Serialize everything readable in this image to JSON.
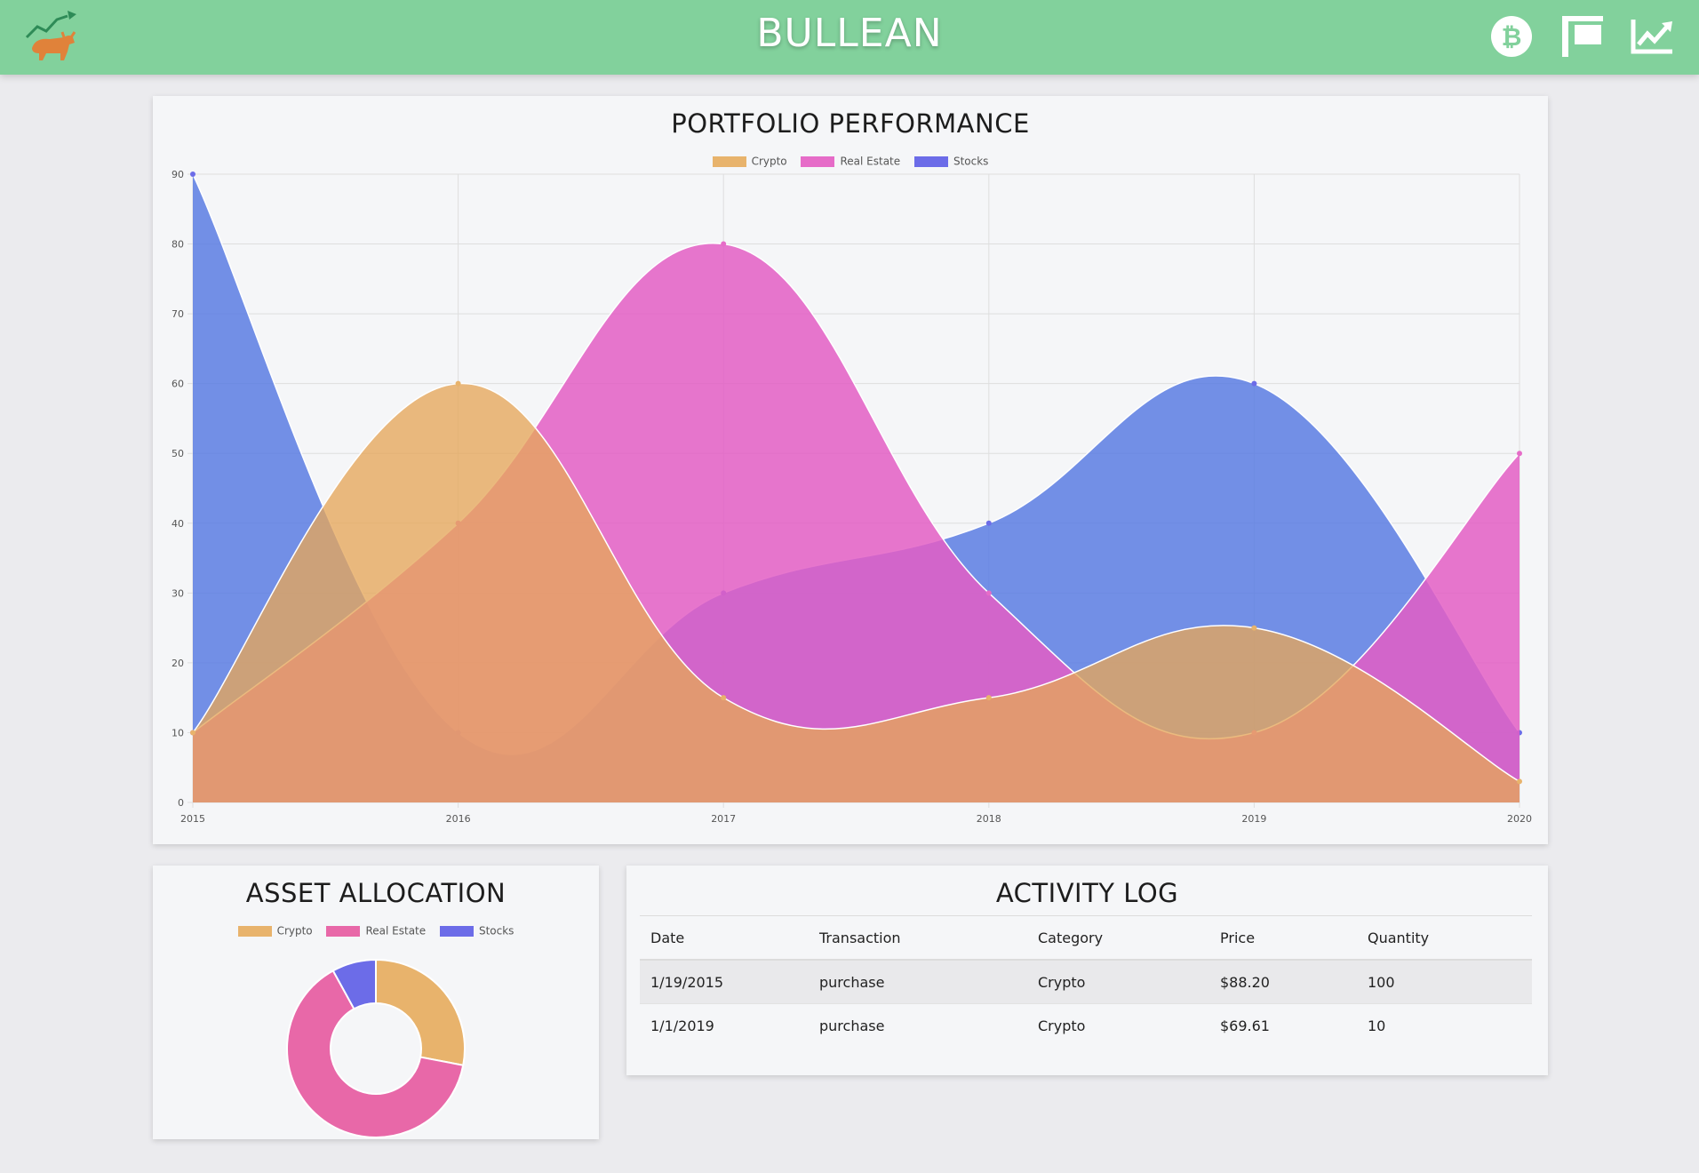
{
  "app": {
    "title": "BULLEAN"
  },
  "nav": {
    "icons": [
      "bull-logo-icon",
      "bitcoin-icon",
      "real-estate-sign-icon",
      "stock-trend-icon"
    ]
  },
  "colors": {
    "header": "#82d19c",
    "crypto": "#e8b36c",
    "real_estate": "#e66cc8",
    "stocks": "#6c6ce8",
    "donut_real_estate": "#e868a8"
  },
  "performance": {
    "title": "PORTFOLIO PERFORMANCE",
    "chart_data": {
      "type": "area",
      "x": [
        "2015",
        "2016",
        "2017",
        "2018",
        "2019",
        "2020"
      ],
      "ylim": [
        0,
        90
      ],
      "yticks": [
        0,
        10,
        20,
        30,
        40,
        50,
        60,
        70,
        80,
        90
      ],
      "grid": true,
      "legend": "top-center",
      "series": [
        {
          "name": "Crypto",
          "values": [
            10,
            60,
            15,
            15,
            25,
            3
          ],
          "color": "#e8b36c"
        },
        {
          "name": "Real Estate",
          "values": [
            10,
            40,
            80,
            30,
            10,
            50
          ],
          "color": "#e66cc8"
        },
        {
          "name": "Stocks",
          "values": [
            90,
            10,
            30,
            40,
            60,
            10
          ],
          "color": "#6c6ce8"
        }
      ]
    }
  },
  "allocation": {
    "title": "ASSET ALLOCATION",
    "chart_data": {
      "type": "pie",
      "legend": "top-center",
      "labels": [
        "Crypto",
        "Real Estate",
        "Stocks"
      ],
      "values": [
        28,
        64,
        8
      ],
      "colors": [
        "#e8b36c",
        "#e868a8",
        "#6c6ce8"
      ]
    }
  },
  "activity": {
    "title": "ACTIVITY LOG",
    "columns": [
      "Date",
      "Transaction",
      "Category",
      "Price",
      "Quantity"
    ],
    "rows": [
      [
        "1/19/2015",
        "purchase",
        "Crypto",
        "$88.20",
        "100"
      ],
      [
        "1/1/2019",
        "purchase",
        "Crypto",
        "$69.61",
        "10"
      ]
    ]
  }
}
